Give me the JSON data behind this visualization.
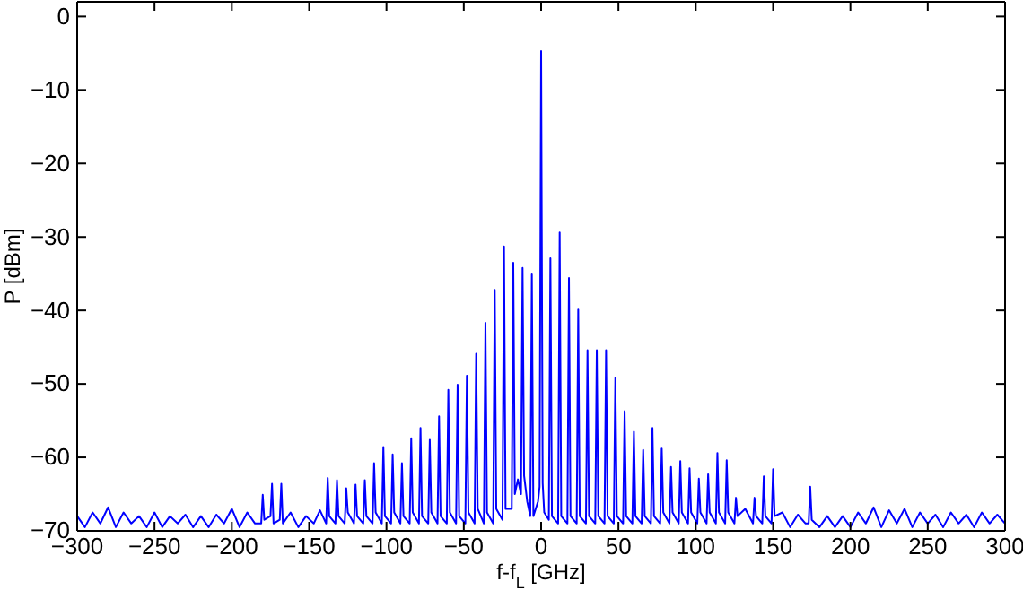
{
  "chart_data": {
    "type": "line",
    "xlabel": "f-f$_{L}$ [GHz]",
    "ylabel": "P [dBm]",
    "xlim": [
      -300,
      300
    ],
    "ylim": [
      -70,
      2
    ],
    "xticks": [
      -300,
      -250,
      -200,
      -150,
      -100,
      -50,
      0,
      50,
      100,
      150,
      200,
      250,
      300
    ],
    "yticks": [
      -70,
      -60,
      -50,
      -40,
      -30,
      -20,
      -10,
      0
    ],
    "grid": false,
    "marker": "none",
    "line_style": "solid",
    "series": [
      {
        "color": "#0000ff",
        "x": [
          -300,
          -295,
          -290,
          -285,
          -280,
          -275,
          -270,
          -265,
          -260,
          -255,
          -250,
          -245,
          -240,
          -235,
          -230,
          -225,
          -220,
          -215,
          -210,
          -205,
          -200,
          -195,
          -190,
          -185,
          -181,
          -180,
          -179,
          -175,
          -174,
          -173,
          -169,
          -168,
          -167,
          -162,
          -157,
          -152,
          -147,
          -143,
          -139,
          -138,
          -137,
          -133,
          -132,
          -131,
          -127,
          -126,
          -125,
          -121,
          -120,
          -119,
          -115,
          -114,
          -113,
          -109,
          -108,
          -107,
          -103,
          -102,
          -101,
          -97,
          -96,
          -95,
          -91,
          -90,
          -89,
          -85,
          -84,
          -83,
          -79,
          -78,
          -77,
          -73,
          -72,
          -71,
          -67,
          -66,
          -65,
          -61,
          -60,
          -59,
          -55,
          -54,
          -53,
          -49,
          -48,
          -47,
          -43,
          -42,
          -41,
          -37,
          -36,
          -35,
          -31,
          -30,
          -29,
          -25,
          -24,
          -23,
          -19,
          -18,
          -17,
          -15,
          -13,
          -12,
          -11,
          -9,
          -7,
          -6,
          -5,
          -2,
          -1,
          0,
          1,
          2,
          5,
          6,
          7,
          11,
          12,
          13,
          17,
          18,
          19,
          23,
          24,
          25,
          29,
          30,
          31,
          35,
          36,
          37,
          41,
          42,
          43,
          47,
          48,
          49,
          53,
          54,
          55,
          59,
          60,
          61,
          65,
          66,
          67,
          71,
          72,
          73,
          77,
          78,
          79,
          83,
          84,
          85,
          89,
          90,
          91,
          95,
          96,
          97,
          101,
          102,
          103,
          107,
          108,
          109,
          113,
          114,
          115,
          119,
          120,
          121,
          125,
          126,
          127,
          132,
          137,
          138,
          139,
          143,
          144,
          145,
          149,
          150,
          151,
          156,
          161,
          166,
          171,
          173,
          174,
          175,
          180,
          185,
          190,
          195,
          200,
          205,
          210,
          215,
          220,
          225,
          230,
          235,
          240,
          245,
          250,
          255,
          260,
          265,
          270,
          275,
          280,
          285,
          290,
          295,
          300
        ],
        "values": [
          -68,
          -69.5,
          -67.5,
          -69,
          -66.8,
          -69.5,
          -67.5,
          -69,
          -68,
          -69.5,
          -67.5,
          -69.5,
          -68,
          -69,
          -67.8,
          -69.5,
          -68,
          -69.5,
          -67.8,
          -69,
          -67,
          -69.5,
          -67.5,
          -69,
          -69,
          -65.1,
          -68.5,
          -68,
          -63.6,
          -69,
          -68.5,
          -63.6,
          -69,
          -67.5,
          -69.5,
          -68,
          -69,
          -67.2,
          -69,
          -62.8,
          -68,
          -69,
          -63.1,
          -68,
          -69,
          -64.2,
          -67.5,
          -69,
          -63.7,
          -68,
          -69,
          -63.1,
          -68,
          -69,
          -60.8,
          -67.5,
          -69,
          -58.6,
          -68,
          -69,
          -59.6,
          -67.5,
          -69,
          -60.8,
          -68,
          -69,
          -57.4,
          -67.5,
          -69,
          -56,
          -68,
          -69,
          -57.6,
          -67.5,
          -69,
          -54.4,
          -68,
          -69,
          -50.8,
          -67.5,
          -69,
          -50.1,
          -68,
          -69,
          -48.9,
          -67.5,
          -69,
          -45.9,
          -67,
          -69,
          -41.7,
          -67.5,
          -69,
          -37.2,
          -67,
          -68.5,
          -31.3,
          -67,
          -67,
          -33.5,
          -65,
          -63,
          -65,
          -34.2,
          -62.5,
          -66,
          -68,
          -35.1,
          -68,
          -66,
          -64,
          -4.7,
          -63.5,
          -67.5,
          -68.5,
          -32.9,
          -68,
          -69,
          -29.4,
          -68,
          -69,
          -35.6,
          -68,
          -69,
          -39.9,
          -68,
          -69,
          -45.4,
          -68,
          -69,
          -45.4,
          -68,
          -69,
          -45.4,
          -68,
          -69,
          -49.2,
          -68,
          -69,
          -53.7,
          -68,
          -69,
          -56.5,
          -68,
          -69,
          -59,
          -68,
          -69,
          -56,
          -68,
          -69,
          -58.8,
          -67.5,
          -69,
          -61.3,
          -67.5,
          -69,
          -60.5,
          -67.5,
          -69,
          -61.5,
          -67.5,
          -69,
          -62.9,
          -67.5,
          -69,
          -62.3,
          -67.5,
          -69,
          -59.4,
          -67.5,
          -69,
          -60.4,
          -67.5,
          -69,
          -65.5,
          -68,
          -67,
          -69,
          -65.5,
          -68,
          -69,
          -62.6,
          -68,
          -69,
          -61.6,
          -68,
          -67.5,
          -69.5,
          -67.8,
          -69,
          -69,
          -64,
          -68.5,
          -69.5,
          -68,
          -69.5,
          -68,
          -69.5,
          -67.5,
          -69,
          -66.8,
          -69.5,
          -67.2,
          -69,
          -67,
          -69.5,
          -67.5,
          -69,
          -67.8,
          -69.5,
          -67.5,
          -69,
          -67.8,
          -69.5,
          -67.5,
          -69,
          -67.8,
          -69
        ]
      }
    ]
  }
}
